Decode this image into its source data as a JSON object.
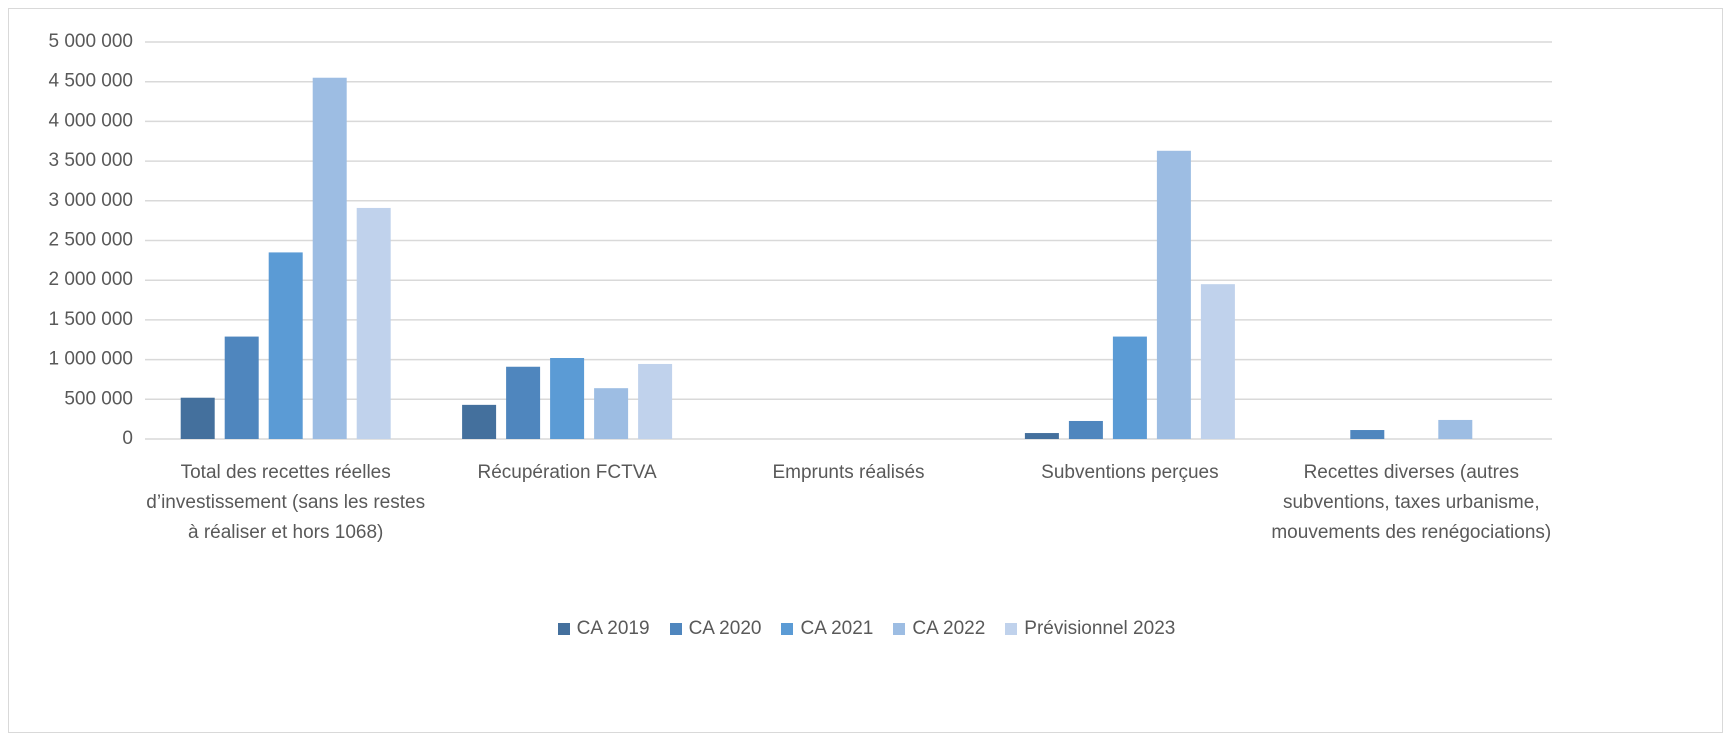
{
  "chart_data": {
    "type": "bar",
    "categories": [
      "Total des recettes réelles d’investissement (sans les restes à réaliser et hors 1068)",
      "Récupération FCTVA",
      "Emprunts réalisés",
      "Subventions perçues",
      "Recettes diverses (autres subventions, taxes urbanisme, mouvements des renégociations)"
    ],
    "series": [
      {
        "name": "CA 2019",
        "color": "#44709d",
        "values": [
          520000,
          430000,
          0,
          75000,
          0
        ]
      },
      {
        "name": "CA 2020",
        "color": "#4f86be",
        "values": [
          1290000,
          910000,
          0,
          227000,
          113000
        ]
      },
      {
        "name": "CA 2021",
        "color": "#5b9bd5",
        "values": [
          2350000,
          1020000,
          0,
          1290000,
          0
        ]
      },
      {
        "name": "CA 2022",
        "color": "#9dbde3",
        "values": [
          4550000,
          640000,
          0,
          3630000,
          240000
        ]
      },
      {
        "name": "Prévisionnel 2023",
        "color": "#c0d2ec",
        "values": [
          2910000,
          945000,
          0,
          1950000,
          0
        ]
      }
    ],
    "ylim": [
      0,
      5000000
    ],
    "yticks": [
      0,
      {
        "value": 500000,
        "label": "500 000"
      },
      {
        "value": 1000000,
        "label": "1 000 000"
      },
      {
        "value": 1500000,
        "label": "1 500 000"
      },
      {
        "value": 2000000,
        "label": "2 000 000"
      },
      {
        "value": 2500000,
        "label": "2 500 000"
      },
      {
        "value": 3000000,
        "label": "3 000 000"
      },
      {
        "value": 3500000,
        "label": "3 500 000"
      },
      {
        "value": 4000000,
        "label": "4 000 000"
      },
      {
        "value": 4500000,
        "label": "4 500 000"
      },
      {
        "value": 5000000,
        "label": "5 000 000"
      }
    ],
    "grid": true,
    "legend": "bottom"
  }
}
